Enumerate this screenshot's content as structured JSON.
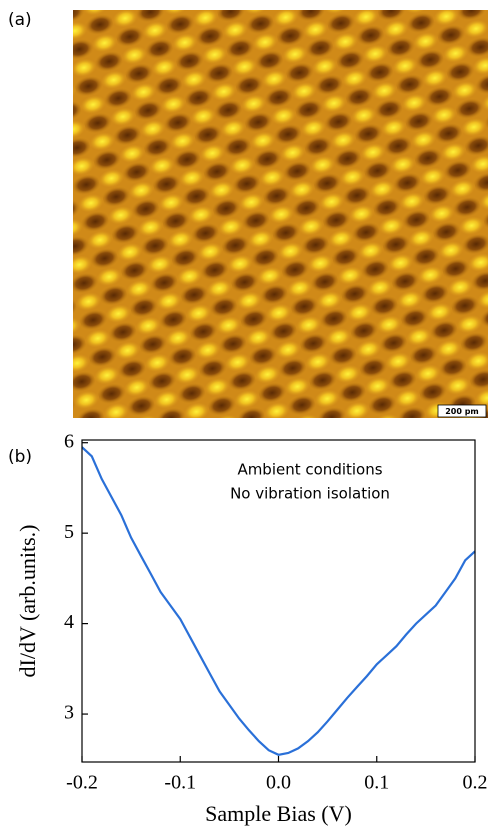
{
  "panel_labels": [
    "(a)",
    "(b)"
  ],
  "image": {
    "scale_bar": "200 pm"
  },
  "chart_data": {
    "type": "line",
    "annotations": [
      "Ambient conditions",
      "No vibration isolation"
    ],
    "x_label": "Sample Bias (V)",
    "y_label": "dI/dV (arb.units.)",
    "x": [
      -0.2,
      -0.19,
      -0.18,
      -0.17,
      -0.16,
      -0.15,
      -0.14,
      -0.13,
      -0.12,
      -0.11,
      -0.1,
      -0.09,
      -0.08,
      -0.07,
      -0.06,
      -0.05,
      -0.04,
      -0.03,
      -0.02,
      -0.01,
      0,
      0.01,
      0.02,
      0.03,
      0.04,
      0.05,
      0.06,
      0.07,
      0.08,
      0.09,
      0.1,
      0.11,
      0.12,
      0.13,
      0.14,
      0.15,
      0.16,
      0.17,
      0.18,
      0.19,
      0.2
    ],
    "values": [
      5.95,
      5.85,
      5.6,
      5.4,
      5.2,
      4.95,
      4.75,
      4.55,
      4.35,
      4.2,
      4.05,
      3.85,
      3.65,
      3.45,
      3.25,
      3.1,
      2.95,
      2.82,
      2.7,
      2.6,
      2.55,
      2.57,
      2.62,
      2.7,
      2.8,
      2.92,
      3.05,
      3.18,
      3.3,
      3.42,
      3.55,
      3.65,
      3.75,
      3.88,
      4.0,
      4.1,
      4.2,
      4.35,
      4.5,
      4.7,
      4.8
    ],
    "color": "#2a70d8",
    "xlim": [
      -0.2,
      0.2
    ],
    "xticks": [
      -0.2,
      -0.1,
      {
        "value": 0,
        "label": "0.0"
      },
      0.1,
      0.2
    ],
    "ylim": [
      2.47,
      6.03
    ],
    "yticks": [
      3,
      4,
      5,
      6
    ]
  }
}
